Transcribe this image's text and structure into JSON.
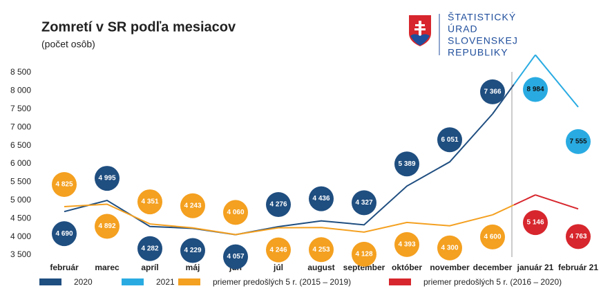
{
  "chart_data": {
    "type": "line",
    "title": "Zomretí v SR podľa mesiacov",
    "subtitle": "(počet osôb)",
    "categories": [
      "február",
      "marec",
      "apríl",
      "máj",
      "jún",
      "júl",
      "august",
      "september",
      "október",
      "november",
      "december",
      "január 21",
      "február 21"
    ],
    "ylim": [
      3500,
      8500
    ],
    "yticks": [
      {
        "value": 3500,
        "label": "3 500"
      },
      {
        "value": 4000,
        "label": "4 000"
      },
      {
        "value": 4500,
        "label": "4 500"
      },
      {
        "value": 5000,
        "label": "5 000"
      },
      {
        "value": 5500,
        "label": "5 500"
      },
      {
        "value": 6000,
        "label": "6 000"
      },
      {
        "value": 6500,
        "label": "6 500"
      },
      {
        "value": 7000,
        "label": "7 000"
      },
      {
        "value": 7500,
        "label": "7 500"
      },
      {
        "value": 8000,
        "label": "8 000"
      },
      {
        "value": 8500,
        "label": "8 500"
      }
    ],
    "grid": false,
    "series": [
      {
        "name": "2020",
        "color": "#1f4e80",
        "values": [
          4690,
          4995,
          4282,
          4229,
          4057,
          4276,
          4436,
          4327,
          5389,
          6051,
          7366,
          null,
          null
        ],
        "value_labels": [
          "4 690",
          "4 995",
          "4 282",
          "4 229",
          "4 057",
          "4 276",
          "4 436",
          "4 327",
          "5 389",
          "6 051",
          "7 366",
          null,
          null
        ]
      },
      {
        "name": "2021",
        "color": "#29abe2",
        "values": [
          null,
          null,
          null,
          null,
          null,
          null,
          null,
          null,
          null,
          null,
          null,
          8984,
          7555
        ],
        "value_labels": [
          null,
          null,
          null,
          null,
          null,
          null,
          null,
          null,
          null,
          null,
          null,
          "8 984",
          "7 555"
        ]
      },
      {
        "name": "priemer predošlých 5 r. (2015 – 2019)",
        "color": "#f4a020",
        "values": [
          4825,
          4892,
          4351,
          4243,
          4060,
          4246,
          4253,
          4128,
          4393,
          4300,
          4600,
          null,
          null
        ],
        "value_labels": [
          "4 825",
          "4 892",
          "4 351",
          "4 243",
          "4 060",
          "4 246",
          "4 253",
          "4 128",
          "4 393",
          "4 300",
          "4 600",
          null,
          null
        ]
      },
      {
        "name": "priemer predošlých 5 r. (2016 – 2020)",
        "color": "#d7262d",
        "values": [
          null,
          null,
          null,
          null,
          null,
          null,
          null,
          null,
          null,
          null,
          null,
          5146,
          4763
        ],
        "value_labels": [
          null,
          null,
          null,
          null,
          null,
          null,
          null,
          null,
          null,
          null,
          null,
          "5 146",
          "4 763"
        ]
      }
    ]
  },
  "logo": {
    "lines": [
      "ŠTATISTICKÝ",
      "ÚRAD",
      "SLOVENSKEJ",
      "REPUBLIKY"
    ]
  }
}
